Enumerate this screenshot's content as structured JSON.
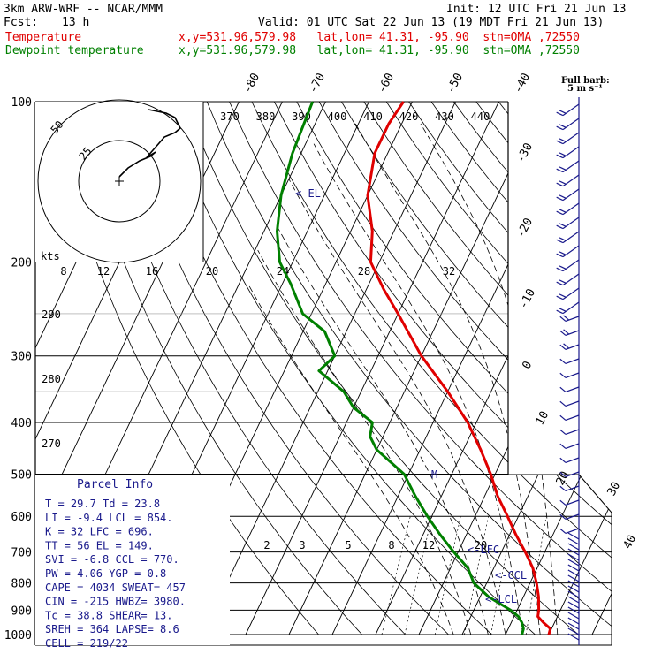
{
  "header": {
    "model": "3km ARW-WRF -- NCAR/MMM",
    "init": "Init: 12 UTC Fri 21 Jun 13",
    "fcst_label": "Fcst:",
    "fcst_value": "13 h",
    "valid": "Valid: 01 UTC Sat 22 Jun 13 (19 MDT Fri 21 Jun 13)",
    "temp_label": "Temperature",
    "dew_label": "Dewpoint temperature",
    "temp_loc": "x,y=531.96,579.98   lat,lon= 41.31, -95.90  stn=OMA ,72550",
    "dew_loc": "x,y=531.96,579.98   lat,lon= 41.31, -95.90  stn=OMA ,72550",
    "temp_color": "#e00000",
    "dew_color": "#008000"
  },
  "parcel_info": {
    "title": "Parcel Info",
    "rows": [
      "T  =   29.7  Td =  23.8",
      "LI =   -9.4  LCL =  854.",
      "K  =     32  LFC =  696.",
      "TT =     56  EL  =  149.",
      "SVI =  -6.8  CCL =  770.",
      "PW =   4.06  YGP =   0.8",
      "CAPE = 4034  SWEAT=  457",
      "CIN =  -215  HWBZ= 3980.",
      "Tc =   38.8  SHEAR=  13.",
      "SREH =  364  LAPSE=  8.6",
      "CELL = 219/22"
    ]
  },
  "barb_legend": {
    "title": "Full barb:",
    "units": "5 m s⁻¹"
  },
  "hodograph": {
    "units": "kts",
    "ring_labels": [
      "25",
      "50"
    ]
  },
  "chart_data": {
    "type": "line",
    "title": "",
    "yscale": "log",
    "ylim": [
      1000,
      100
    ],
    "pressure_levels": [
      100,
      200,
      300,
      400,
      500,
      600,
      700,
      800,
      900,
      1000
    ],
    "isotherm_labels": [
      "-80",
      "-70",
      "-60",
      "-50",
      "-40",
      "-30",
      "-20",
      "-10",
      "0",
      "10",
      "20",
      "30",
      "40"
    ],
    "dry_adiabat_labels": [
      "370",
      "380",
      "390",
      "400",
      "410",
      "420",
      "430",
      "440"
    ],
    "mixing_ratio_labels": [
      "2",
      "3",
      "5",
      "8",
      "12",
      "20"
    ],
    "wetbulb_labels": [
      "8",
      "12",
      "16",
      "20",
      "24",
      "28",
      "32"
    ],
    "theta_left_labels": [
      "290",
      "280",
      "270"
    ],
    "annotations": {
      "el": "<-EL",
      "lfc": "<-LFC",
      "ccl": "<-CCL",
      "lcl": "<-LCL",
      "m": "M"
    },
    "series": [
      {
        "name": "Temperature",
        "color": "#e00000",
        "points": [
          [
            1000,
            30
          ],
          [
            975,
            29.7
          ],
          [
            950,
            27.5
          ],
          [
            925,
            25.5
          ],
          [
            900,
            25
          ],
          [
            850,
            23.5
          ],
          [
            800,
            21.5
          ],
          [
            750,
            19
          ],
          [
            700,
            15.5
          ],
          [
            650,
            11.5
          ],
          [
            600,
            7.5
          ],
          [
            550,
            3
          ],
          [
            500,
            -1
          ],
          [
            450,
            -6
          ],
          [
            400,
            -12
          ],
          [
            350,
            -20
          ],
          [
            300,
            -30
          ],
          [
            250,
            -40
          ],
          [
            225,
            -46
          ],
          [
            200,
            -52
          ],
          [
            175,
            -55
          ],
          [
            150,
            -60
          ],
          [
            125,
            -63
          ],
          [
            110,
            -63
          ],
          [
            100,
            -62
          ]
        ]
      },
      {
        "name": "Dewpoint temperature",
        "color": "#008000",
        "points": [
          [
            1000,
            23.8
          ],
          [
            975,
            23.5
          ],
          [
            950,
            22.5
          ],
          [
            925,
            21
          ],
          [
            900,
            18.5
          ],
          [
            850,
            12
          ],
          [
            800,
            7
          ],
          [
            750,
            4
          ],
          [
            700,
            -1
          ],
          [
            650,
            -6
          ],
          [
            600,
            -11
          ],
          [
            550,
            -16
          ],
          [
            500,
            -21
          ],
          [
            450,
            -30
          ],
          [
            425,
            -33
          ],
          [
            400,
            -34
          ],
          [
            375,
            -40
          ],
          [
            350,
            -44
          ],
          [
            320,
            -52
          ],
          [
            300,
            -50
          ],
          [
            270,
            -55
          ],
          [
            250,
            -62
          ],
          [
            220,
            -68
          ],
          [
            200,
            -73
          ],
          [
            175,
            -77
          ],
          [
            150,
            -80
          ],
          [
            125,
            -82
          ],
          [
            100,
            -83
          ]
        ]
      }
    ]
  }
}
